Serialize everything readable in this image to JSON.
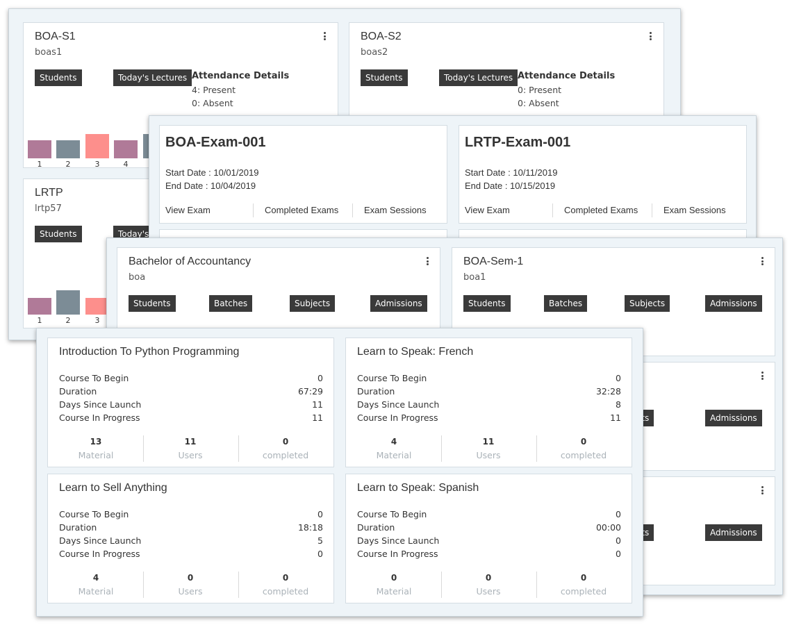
{
  "batches_panel": {
    "cards": [
      {
        "title": "BOA-S1",
        "code": "boas1",
        "btn_students": "Students",
        "btn_lectures": "Today's Lectures",
        "attendance_heading": "Attendance Details",
        "present": "4: Present",
        "absent": "0: Absent",
        "bar_labels": [
          "1",
          "2",
          "3",
          "4"
        ]
      },
      {
        "title": "BOA-S2",
        "code": "boas2",
        "btn_students": "Students",
        "btn_lectures": "Today's Lectures",
        "attendance_heading": "Attendance Details",
        "present": "0: Present",
        "absent": "0: Absent"
      },
      {
        "title": "LRTP",
        "code": "lrtp57",
        "btn_students": "Students",
        "btn_lectures": "Today's L",
        "bar_labels": [
          "1",
          "2",
          "3"
        ]
      }
    ],
    "bar_colors": {
      "purple": "#b07a98",
      "slate": "#7c8c96",
      "salmon": "#fd8f8c"
    }
  },
  "exams_panel": {
    "cards": [
      {
        "title": "BOA-Exam-001",
        "start": "Start Date : 10/01/2019",
        "end": "End Date : 10/04/2019",
        "links": [
          "View Exam",
          "Completed Exams",
          "Exam Sessions"
        ]
      },
      {
        "title": "LRTP-Exam-001",
        "start": "Start Date : 10/11/2019",
        "end": "End Date : 10/15/2019",
        "links": [
          "View Exam",
          "Completed Exams",
          "Exam Sessions"
        ]
      }
    ]
  },
  "programs_panel": {
    "cards": [
      {
        "title": "Bachelor of Accountancy",
        "code": "boa",
        "buttons": [
          "Students",
          "Batches",
          "Subjects",
          "Admissions"
        ]
      },
      {
        "title": "BOA-Sem-1",
        "code": "boa1",
        "buttons": [
          "Students",
          "Batches",
          "Subjects",
          "Admissions"
        ]
      },
      {
        "partial_buttons": [
          "jects",
          "Admissions"
        ]
      },
      {
        "partial_buttons": [
          "jects",
          "Admissions"
        ]
      }
    ]
  },
  "courses_panel": {
    "labels": {
      "begin": "Course To Begin",
      "duration": "Duration",
      "days": "Days Since Launch",
      "progress": "Course In Progress",
      "material": "Material",
      "users": "Users",
      "completed": "completed"
    },
    "courses": [
      {
        "title": "Introduction To Python Programming",
        "begin": "0",
        "duration": "67:29",
        "days": "11",
        "progress": "11",
        "material": "13",
        "users": "11",
        "completed": "0"
      },
      {
        "title": "Learn to Speak: French",
        "begin": "0",
        "duration": "32:28",
        "days": "8",
        "progress": "11",
        "material": "4",
        "users": "11",
        "completed": "0"
      },
      {
        "title": "Learn to Sell Anything",
        "begin": "0",
        "duration": "18:18",
        "days": "5",
        "progress": "0",
        "material": "4",
        "users": "0",
        "completed": "0"
      },
      {
        "title": "Learn to Speak: Spanish",
        "begin": "0",
        "duration": "00:00",
        "days": "0",
        "progress": "0",
        "material": "0",
        "users": "0",
        "completed": "0"
      }
    ]
  }
}
